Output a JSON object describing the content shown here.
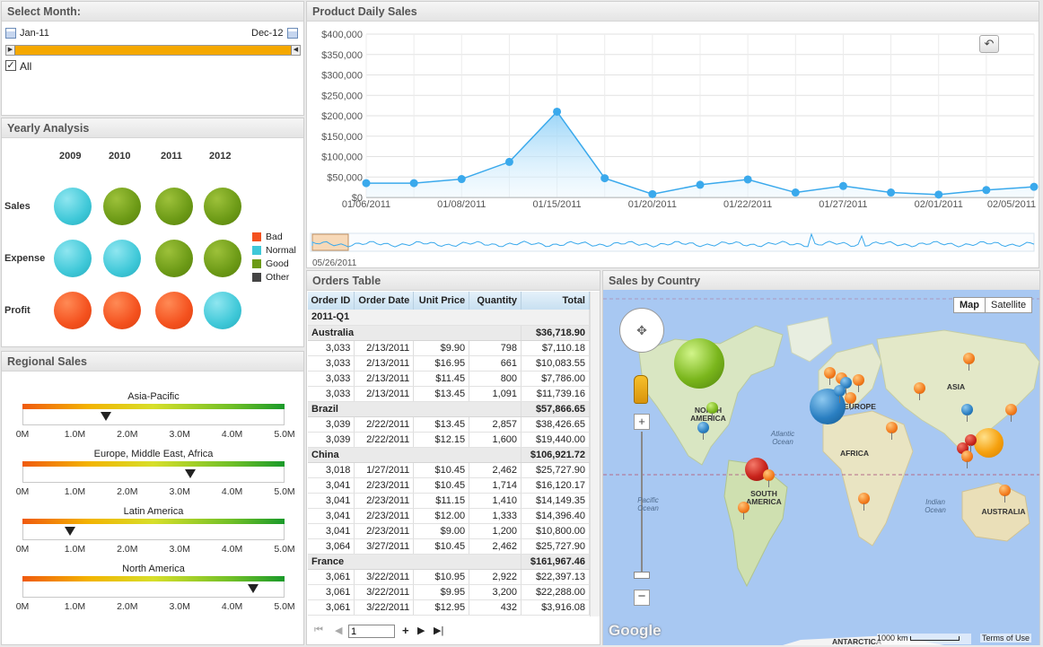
{
  "select_month": {
    "title": "Select Month:",
    "start": "Jan-11",
    "end": "Dec-12",
    "all_label": "All",
    "all_checked": true
  },
  "yearly": {
    "title": "Yearly Analysis",
    "years": [
      "2009",
      "2010",
      "2011",
      "2012"
    ],
    "rows": [
      {
        "label": "Sales",
        "status": [
          "Normal",
          "Good",
          "Good",
          "Good"
        ]
      },
      {
        "label": "Expense",
        "status": [
          "Normal",
          "Normal",
          "Good",
          "Good"
        ]
      },
      {
        "label": "Profit",
        "status": [
          "Bad",
          "Bad",
          "Bad",
          "Normal"
        ]
      }
    ],
    "legend": [
      {
        "label": "Bad",
        "color": "#f4511e"
      },
      {
        "label": "Normal",
        "color": "#3fc8d8"
      },
      {
        "label": "Good",
        "color": "#6c9a16"
      },
      {
        "label": "Other",
        "color": "#444444"
      }
    ]
  },
  "regional": {
    "title": "Regional Sales",
    "ticks": [
      "0M",
      "1.0M",
      "2.0M",
      "3.0M",
      "4.0M",
      "5.0M"
    ],
    "gauges": [
      {
        "label": "Asia-Pacific",
        "value": 1.6
      },
      {
        "label": "Europe, Middle East, Africa",
        "value": 3.2
      },
      {
        "label": "Latin America",
        "value": 0.9
      },
      {
        "label": "North America",
        "value": 4.4
      }
    ]
  },
  "daily_sales": {
    "title": "Product Daily Sales",
    "navigator_label": "05/26/2011"
  },
  "chart_data": {
    "type": "area",
    "title": "Product Daily Sales",
    "y_ticks": [
      "$0",
      "$50,000",
      "$100,000",
      "$150,000",
      "$200,000",
      "$250,000",
      "$300,000",
      "$350,000",
      "$400,000"
    ],
    "ylim": [
      0,
      400000
    ],
    "x_tick_labels": [
      "01/06/2011",
      "01/08/2011",
      "01/15/2011",
      "01/20/2011",
      "01/22/2011",
      "01/27/2011",
      "02/01/2011",
      "02/05/2011"
    ],
    "x_index_range": [
      0,
      14
    ],
    "points": [
      {
        "i": 0,
        "y": 35000
      },
      {
        "i": 1,
        "y": 35000
      },
      {
        "i": 2,
        "y": 45000
      },
      {
        "i": 3,
        "y": 87000
      },
      {
        "i": 4,
        "y": 210000
      },
      {
        "i": 5,
        "y": 47000
      },
      {
        "i": 6,
        "y": 8000
      },
      {
        "i": 7,
        "y": 31000
      },
      {
        "i": 8,
        "y": 44000
      },
      {
        "i": 9,
        "y": 12000
      },
      {
        "i": 10,
        "y": 28000
      },
      {
        "i": 11,
        "y": 12000
      },
      {
        "i": 12,
        "y": 7000
      },
      {
        "i": 13,
        "y": 18000
      },
      {
        "i": 14,
        "y": 26000
      }
    ],
    "grid": true,
    "color": "#3aa9ec"
  },
  "orders": {
    "title": "Orders Table",
    "columns": [
      "Order ID",
      "Order Date",
      "Unit Price",
      "Quantity",
      "Total"
    ],
    "quarter": "2011-Q1",
    "groups": [
      {
        "name": "Australia",
        "total": "$36,718.90",
        "rows": [
          [
            "3,033",
            "2/13/2011",
            "$9.90",
            "798",
            "$7,110.18"
          ],
          [
            "3,033",
            "2/13/2011",
            "$16.95",
            "661",
            "$10,083.55"
          ],
          [
            "3,033",
            "2/13/2011",
            "$11.45",
            "800",
            "$7,786.00"
          ],
          [
            "3,033",
            "2/13/2011",
            "$13.45",
            "1,091",
            "$11,739.16"
          ]
        ]
      },
      {
        "name": "Brazil",
        "total": "$57,866.65",
        "rows": [
          [
            "3,039",
            "2/22/2011",
            "$13.45",
            "2,857",
            "$38,426.65"
          ],
          [
            "3,039",
            "2/22/2011",
            "$12.15",
            "1,600",
            "$19,440.00"
          ]
        ]
      },
      {
        "name": "China",
        "total": "$106,921.72",
        "rows": [
          [
            "3,018",
            "1/27/2011",
            "$10.45",
            "2,462",
            "$25,727.90"
          ],
          [
            "3,041",
            "2/23/2011",
            "$10.45",
            "1,714",
            "$16,120.17"
          ],
          [
            "3,041",
            "2/23/2011",
            "$11.15",
            "1,410",
            "$14,149.35"
          ],
          [
            "3,041",
            "2/23/2011",
            "$12.00",
            "1,333",
            "$14,396.40"
          ],
          [
            "3,041",
            "2/23/2011",
            "$9.00",
            "1,200",
            "$10,800.00"
          ],
          [
            "3,064",
            "3/27/2011",
            "$10.45",
            "2,462",
            "$25,727.90"
          ]
        ]
      },
      {
        "name": "France",
        "total": "$161,967.46",
        "rows": [
          [
            "3,061",
            "3/22/2011",
            "$10.95",
            "2,922",
            "$22,397.13"
          ],
          [
            "3,061",
            "3/22/2011",
            "$9.95",
            "3,200",
            "$22,288.00"
          ],
          [
            "3,061",
            "3/22/2011",
            "$12.95",
            "432",
            "$3,916.08"
          ]
        ]
      }
    ],
    "page_value": "1"
  },
  "map": {
    "title": "Sales by Country",
    "map_btn": "Map",
    "satellite_btn": "Satellite",
    "labels": [
      "NORTH AMERICA",
      "SOUTH AMERICA",
      "EUROPE",
      "AFRICA",
      "ASIA",
      "AUSTRALIA",
      "ANTARCTICA"
    ],
    "oceans": [
      "Atlantic Ocean",
      "Pacific Ocean",
      "Indian Ocean"
    ],
    "logo": "Google",
    "scale": "1000 km",
    "terms": "Terms of Use"
  }
}
